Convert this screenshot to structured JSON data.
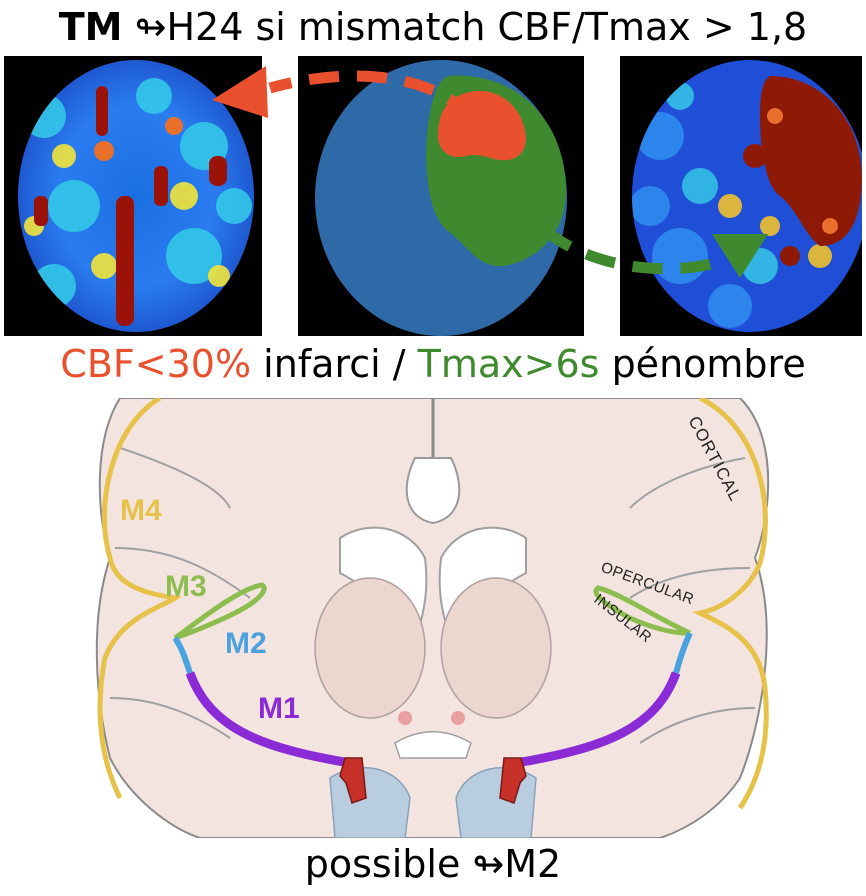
{
  "title": {
    "bold": "TM",
    "rest": "↬H24 si mismatch CBF/Tmax > 1,8"
  },
  "caption": {
    "cbf": "CBF<30%",
    "infarct": " infarci / ",
    "tmax": "Tmax>6s",
    "penumbra": " pénombre"
  },
  "diagram_labels": {
    "m1": "M1",
    "m2": "M2",
    "m3": "M3",
    "m4": "M4",
    "cortical": "CORTICAL",
    "opercular": "OPERCULAR",
    "insular": "INSULAR"
  },
  "bottom": {
    "text": "possible ↬M2"
  },
  "colors": {
    "infarct": "#e8502e",
    "penumbra": "#3f8a2f",
    "m1": "#8a2bd6",
    "m2": "#4aa3df",
    "m3": "#8dbd4f",
    "m4": "#e7c24a"
  }
}
